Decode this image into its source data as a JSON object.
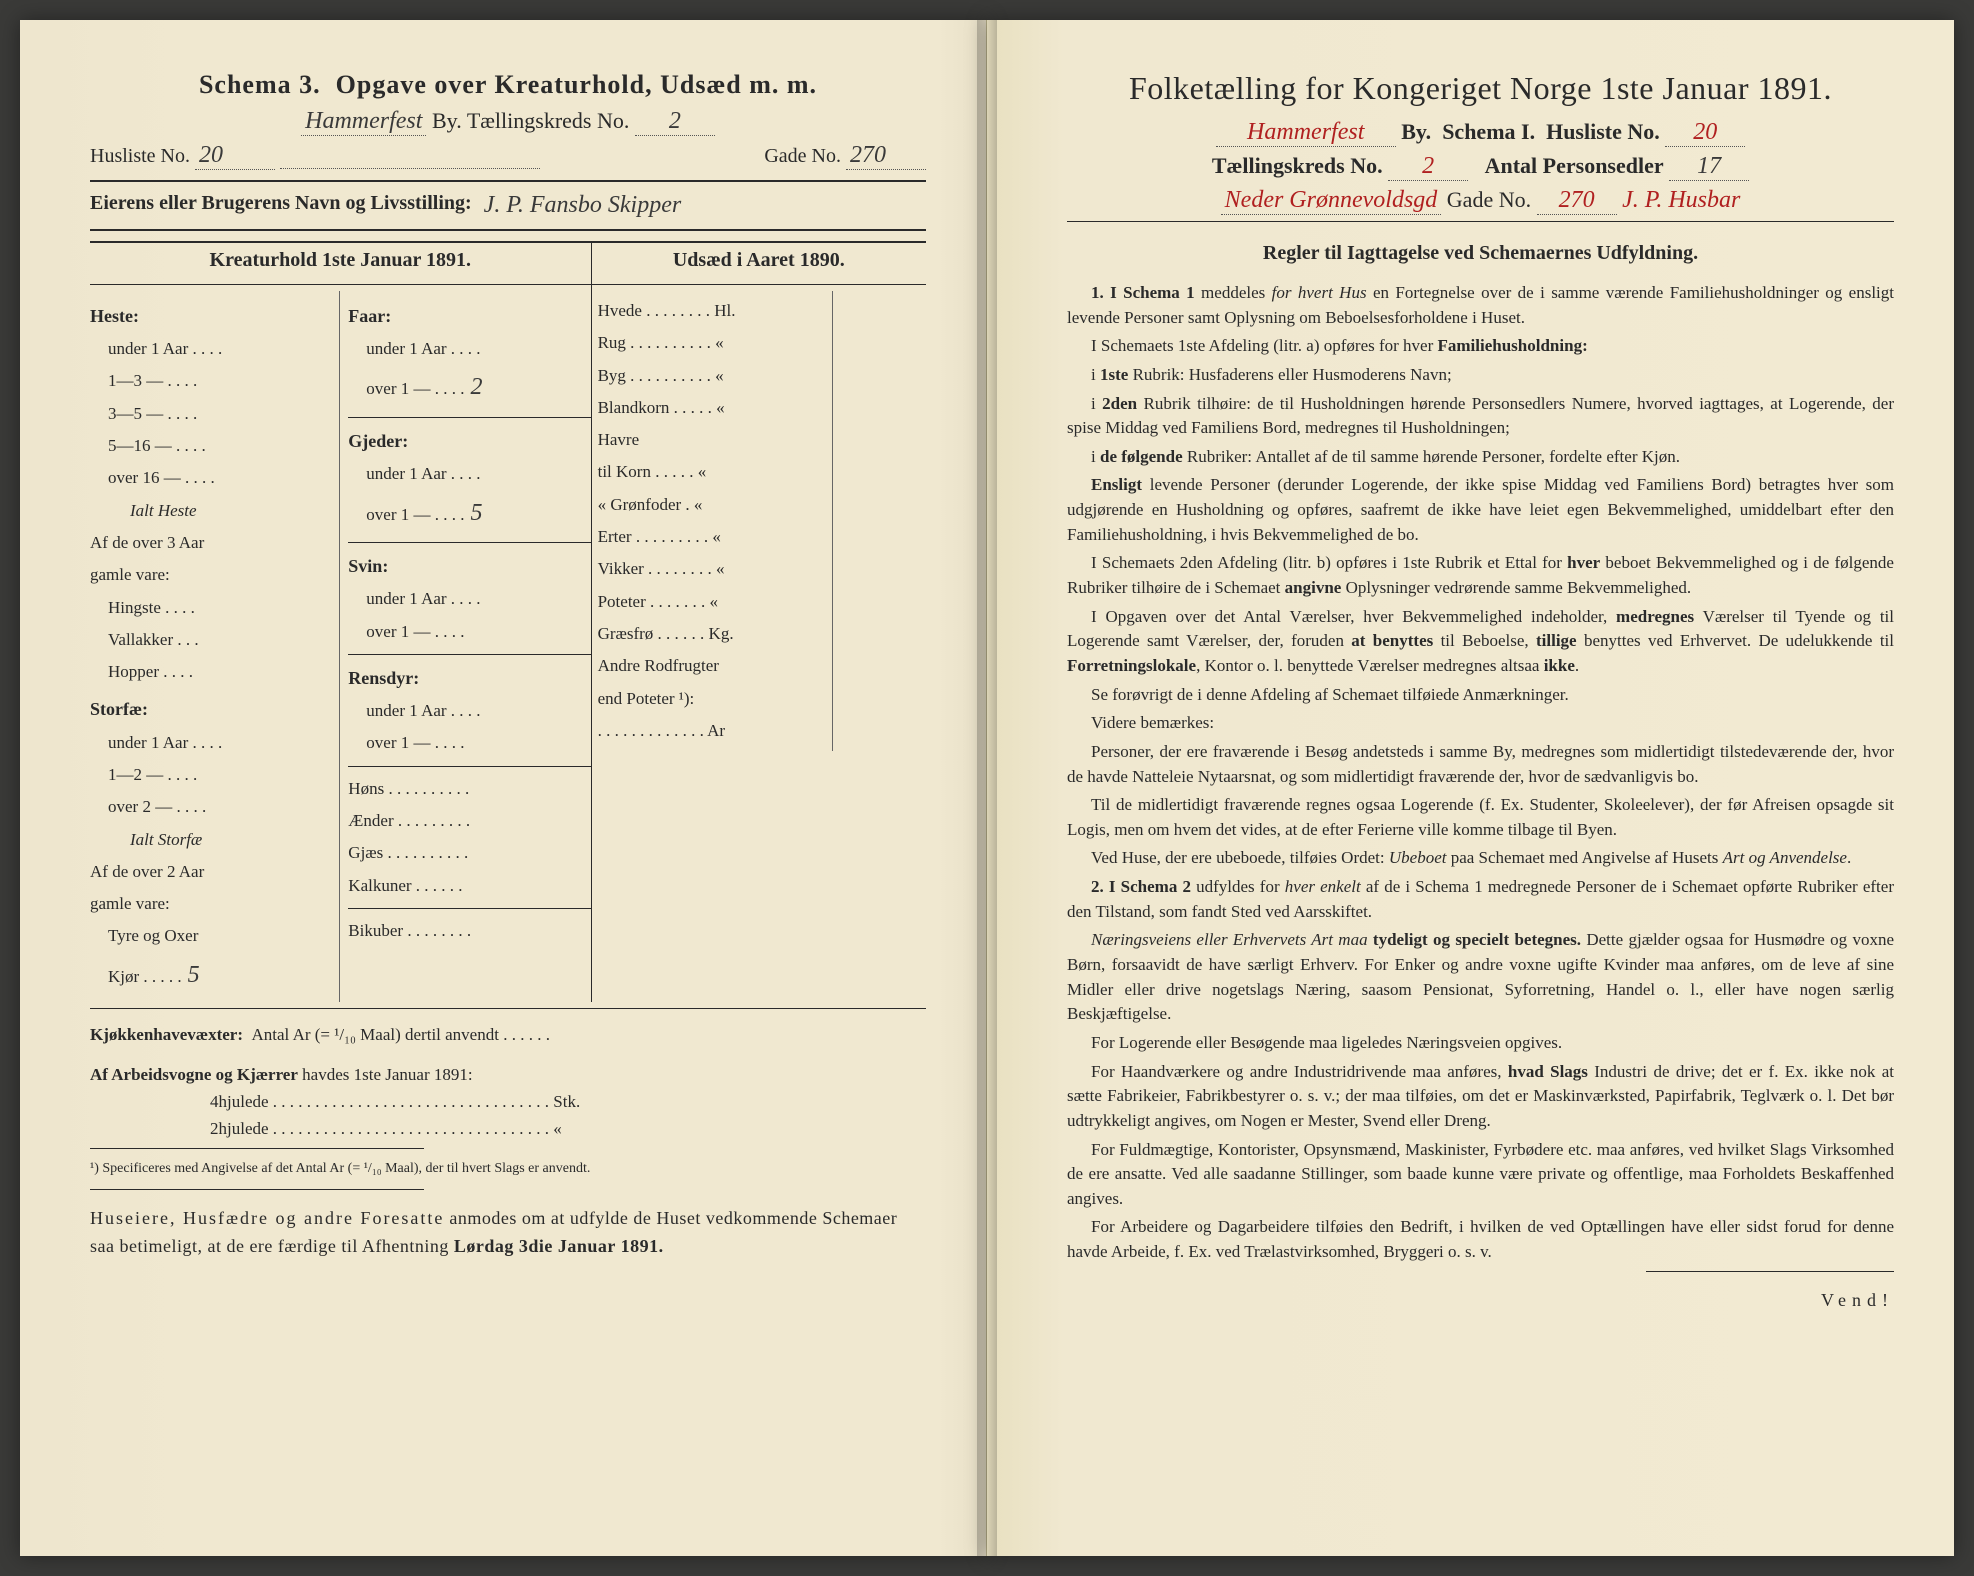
{
  "left": {
    "schema_label": "Schema 3.",
    "title": "Opgave over Kreaturhold, Udsæd m. m.",
    "city_handwritten": "Hammerfest",
    "by_label": "By.",
    "district_label": "Tællingskreds No.",
    "district_no": "2",
    "husliste_label": "Husliste No.",
    "husliste_no": "20",
    "gade_label": "Gade No.",
    "gade_no": "270",
    "owner_label": "Eierens eller Brugerens Navn og Livsstilling:",
    "owner_value": "J. P. Fansbo Skipper",
    "kreatur_head": "Kreaturhold 1ste Januar 1891.",
    "udsaed_head": "Udsæd i Aaret 1890.",
    "animals_left": [
      {
        "cat": "Heste:"
      },
      {
        "sub": "under 1 Aar . . . ."
      },
      {
        "sub": "1—3  —  . . . ."
      },
      {
        "sub": "3—5  —  . . . ."
      },
      {
        "sub": "5—16 —  . . . ."
      },
      {
        "sub": "over 16 —  . . . ."
      },
      {
        "ital": "Ialt Heste"
      },
      {
        "plain": "Af de over 3 Aar"
      },
      {
        "plain": "gamle vare:"
      },
      {
        "sub": "Hingste . . . ."
      },
      {
        "sub": "Vallakker . . ."
      },
      {
        "sub": "Hopper . . . ."
      },
      {
        "cat": "Storfæ:"
      },
      {
        "sub": "under 1 Aar . . . ."
      },
      {
        "sub": "1—2  —  . . . ."
      },
      {
        "sub": "over 2  —  . . . ."
      },
      {
        "ital": "Ialt Storfæ"
      },
      {
        "plain": "Af de over 2 Aar"
      },
      {
        "plain": "gamle vare:"
      },
      {
        "sub": "Tyre og Oxer"
      },
      {
        "sub": "Kjør . . . . ."
      }
    ],
    "animals_right": [
      {
        "cat": "Faar:"
      },
      {
        "sub": "under 1 Aar . . . ."
      },
      {
        "sub": "over 1  —  . . . .",
        "val": "2"
      },
      {
        "rule": true
      },
      {
        "cat": "Gjeder:"
      },
      {
        "sub": "under 1 Aar . . . ."
      },
      {
        "sub": "over 1  —  . . . .",
        "val": "5"
      },
      {
        "rule": true
      },
      {
        "cat": "Svin:"
      },
      {
        "sub": "under 1 Aar . . . ."
      },
      {
        "sub": "over 1  —  . . . ."
      },
      {
        "rule": true
      },
      {
        "cat": "Rensdyr:"
      },
      {
        "sub": "under 1 Aar . . . ."
      },
      {
        "sub": "over 1  —  . . . ."
      },
      {
        "rule": true
      },
      {
        "plain": "Høns . . . . . . . . . ."
      },
      {
        "plain": "Ænder . . . . . . . . ."
      },
      {
        "plain": "Gjæs . . . . . . . . . ."
      },
      {
        "plain": "Kalkuner . . . . . ."
      },
      {
        "rule": true
      },
      {
        "plain": "Bikuber . . . . . . . ."
      }
    ],
    "kjor_val": "5",
    "crops": [
      "Hvede . . . . . . . . Hl.",
      "Rug . . . . . . . . . . «",
      "Byg . . . . . . . . . . «",
      "Blandkorn . . . . . «",
      "Havre",
      "   til Korn . . . . . «",
      "   « Grønfoder . «",
      "Erter . . . . . . . . . «",
      "Vikker . . . . . . . . «",
      "Poteter . . . . . . . «",
      "Græsfrø . . . . . . Kg.",
      "Andre Rodfrugter",
      "   end Poteter ¹):",
      ". . . . . . . . . . . . . Ar"
    ],
    "kjokken": "Kjøkkenhavevæxter:  Antal Ar (= ¹/₁₀ Maal) dertil anvendt . . . . . .",
    "arbeids_label": "Af Arbeidsvogne og Kjærrer havdes 1ste Januar 1891:",
    "arbeids_4": "4hjulede . . . . . . . . . . . . . . . . . . . . . . . . . . . . . . . . . Stk.",
    "arbeids_2": "2hjulede . . . . . . . . . . . . . . . . . . . . . . . . . . . . . . . . .  «",
    "footnote": "¹) Specificeres med Angivelse af det Antal Ar (= ¹/₁₀ Maal), der til hvert Slags er anvendt.",
    "closing": "Huseiere, Husfædre og andre Foresatte anmodes om at udfylde de Huset vedkommende Schemaer saa betimeligt, at de ere færdige til Afhentning Lørdag 3die Januar 1891."
  },
  "right": {
    "title": "Folketælling for Kongeriget Norge 1ste Januar 1891.",
    "city_handwritten": "Hammerfest",
    "by_label": "By.",
    "schema_label": "Schema I.",
    "husliste_label": "Husliste No.",
    "husliste_no": "20",
    "district_label": "Tællingskreds No.",
    "district_no": "2",
    "personsedler_label": "Antal Personsedler",
    "personsedler_no": "17",
    "gade_line_red": "Neder Grønnevoldsgd",
    "gade_label": "Gade No.",
    "gade_no": "270",
    "owner_red": "J. P. Husbar",
    "rules_title": "Regler til Iagttagelse ved Schemaernes Udfyldning.",
    "rules": [
      "<span class='num'>1. I Schema 1</span> meddeles <span class='em'>for hvert Hus</span> en Fortegnelse over de i samme værende Familiehusholdninger og ensligt levende Personer samt Oplysning om Beboelsesforholdene i Huset.",
      "I Schemaets 1ste Afdeling (litr. a) opføres for hver <span class='b'>Familiehusholdning:</span>",
      "i <span class='b'>1ste</span> Rubrik: Husfaderens eller Husmoderens Navn;",
      "i <span class='b'>2den</span> Rubrik tilhøire: de til Husholdningen hørende Personsedlers Numere, hvorved iagttages, at Logerende, der spise Middag ved Familiens Bord, medregnes til Husholdningen;",
      "i <span class='b'>de følgende</span> Rubriker: Antallet af de til samme hørende Personer, fordelte efter Kjøn.",
      "<span class='b'>Ensligt</span> levende Personer (derunder Logerende, der ikke spise Middag ved Familiens Bord) betragtes hver som udgjørende en Husholdning og opføres, saafremt de ikke have leiet egen Bekvemmelighed, umiddelbart efter den Familiehusholdning, i hvis Bekvemmelighed de bo.",
      "I Schemaets 2den Afdeling (litr. b) opføres i 1ste Rubrik et Ettal for <span class='b'>hver</span> beboet Bekvemmelighed og i de følgende Rubriker tilhøire de i Schemaet <span class='b'>angivne</span> Oplysninger vedrørende samme Bekvemmelighed.",
      "I Opgaven over det Antal Værelser, hver Bekvemmelighed indeholder, <span class='b'>medregnes</span> Værelser til Tyende og til Logerende samt Værelser, der, foruden <span class='b'>at benyttes</span> til Beboelse, <span class='b'>tillige</span> benyttes ved Erhvervet. De udelukkende til <span class='b'>Forretningslokale</span>, Kontor o. l. benyttede Værelser medregnes altsaa <span class='b'>ikke</span>.",
      "Se forøvrigt de i denne Afdeling af Schemaet tilføiede Anmærkninger.",
      "Videre bemærkes:",
      "Personer, der ere fraværende i Besøg andetsteds i samme By, medregnes som midlertidigt tilstedeværende der, hvor de havde Natteleie Nytaarsnat, og som midlertidigt fraværende der, hvor de sædvanligvis bo.",
      "Til de midlertidigt fraværende regnes ogsaa Logerende (f. Ex. Studenter, Skoleelever), der før Afreisen opsagde sit Logis, men om hvem det vides, at de efter Ferierne ville komme tilbage til Byen.",
      "Ved Huse, der ere ubeboede, tilføies Ordet: <span class='em'>Ubeboet</span> paa Schemaet med Angivelse af Husets <span class='em'>Art og Anvendelse</span>.",
      "<span class='num'>2. I Schema 2</span> udfyldes for <span class='em'>hver enkelt</span> af de i Schema 1 medregnede Personer de i Schemaet opførte Rubriker efter den Tilstand, som fandt Sted ved Aarsskiftet.",
      "<span class='em'>Næringsveiens eller Erhvervets Art maa</span> <span class='b'>tydeligt og specielt betegnes.</span> Dette gjælder ogsaa for Husmødre og voxne Børn, forsaavidt de have særligt Erhverv. For Enker og andre voxne ugifte Kvinder maa anføres, om de leve af sine Midler eller drive nogetslags Næring, saasom Pensionat, Syforretning, Handel o. l., eller have nogen særlig Beskjæftigelse.",
      "For Logerende eller Besøgende maa ligeledes Næringsveien opgives.",
      "For Haandværkere og andre Industridrivende maa anføres, <span class='b'>hvad Slags</span> Industri de drive; det er f. Ex. ikke nok at sætte Fabrikeier, Fabrikbestyrer o. s. v.; der maa tilføies, om det er Maskinværksted, Papirfabrik, Teglværk o. l. Det bør udtrykkeligt angives, om Nogen er Mester, Svend eller Dreng.",
      "For Fuldmægtige, Kontorister, Opsynsmænd, Maskinister, Fyrbødere etc. maa anføres, ved hvilket Slags Virksomhed de ere ansatte. Ved alle saadanne Stillinger, som baade kunne være private og offentlige, maa Forholdets Beskaffenhed angives.",
      "For Arbeidere og Dagarbeidere tilføies den Bedrift, i hvilken de ved Optællingen have eller sidst forud for denne havde Arbeide, f. Ex. ved Trælastvirksomhed, Bryggeri o. s. v."
    ],
    "vend": "Vend!"
  }
}
